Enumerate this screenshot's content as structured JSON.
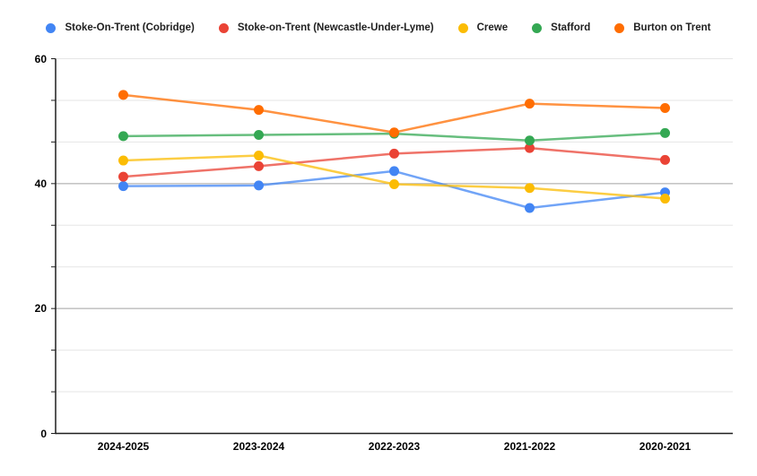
{
  "chart_data": {
    "type": "line",
    "title": "",
    "xlabel": "",
    "ylabel": "",
    "legend_position": "top",
    "grid": true,
    "categories": [
      "2024-2025",
      "2023-2024",
      "2022-2023",
      "2021-2022",
      "2020-2021"
    ],
    "series": [
      {
        "name": "Stoke-On-Trent (Cobridge)",
        "color": "#4285F4",
        "values": [
          39.6,
          39.7,
          42.0,
          36.1,
          38.6
        ]
      },
      {
        "name": "Stoke-on-Trent (Newcastle-Under-Lyme)",
        "color": "#EA4335",
        "values": [
          41.1,
          42.8,
          44.8,
          45.7,
          43.8
        ]
      },
      {
        "name": "Crewe",
        "color": "#FBBC04",
        "values": [
          43.7,
          44.5,
          39.9,
          39.3,
          37.6
        ]
      },
      {
        "name": "Stafford",
        "color": "#34A853",
        "values": [
          47.6,
          47.8,
          48.0,
          46.9,
          48.1
        ]
      },
      {
        "name": "Burton on Trent",
        "color": "#FF6D01",
        "values": [
          54.2,
          51.8,
          48.2,
          52.8,
          52.1
        ]
      }
    ],
    "y_axis": {
      "min": 0,
      "max": 60,
      "ticks": [
        0,
        20,
        40,
        60
      ],
      "major_step": 20,
      "minor_per_major": 2
    },
    "colors": {
      "axis": "#1f1f1f",
      "major_grid": "#a2a2a2",
      "minor_grid": "#e6e6e6",
      "background": "#ffffff"
    }
  }
}
